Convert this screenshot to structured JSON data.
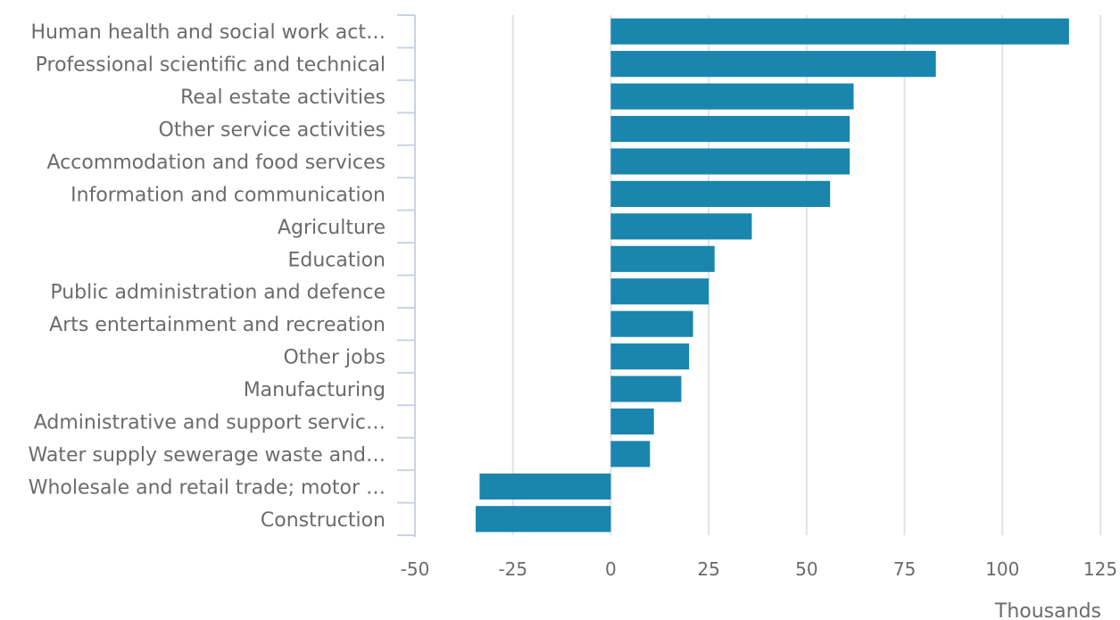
{
  "chart_data": {
    "type": "bar",
    "orientation": "horizontal",
    "categories": [
      "Human health and social work act…",
      "Professional scientific and technical",
      "Real estate activities",
      "Other service activities",
      "Accommodation and food services",
      "Information and communication",
      "Agriculture",
      "Education",
      "Public administration and defence",
      "Arts entertainment and recreation",
      "Other jobs",
      "Manufacturing",
      "Administrative and support servic…",
      "Water supply sewerage waste and…",
      "Wholesale and retail trade; motor …",
      "Construction"
    ],
    "values": [
      117,
      83,
      62,
      61,
      61,
      56,
      36,
      26.5,
      25,
      21,
      20,
      18,
      11,
      10,
      -33.5,
      -34.5
    ],
    "xlim": [
      -50,
      125
    ],
    "x_ticks": [
      -50,
      -25,
      0,
      25,
      50,
      75,
      100,
      125
    ],
    "x_tick_labels": [
      "-50",
      "-25",
      "0",
      "25",
      "50",
      "75",
      "100",
      "125"
    ],
    "xlabel": "Thousands",
    "ylabel": "",
    "title": "",
    "grid": true,
    "legend": "none",
    "bar_color": "#1a85ad",
    "grid_color": "#dfe3ea",
    "axis_color": "#c9d3e6",
    "text_color": "#6b6b6b"
  }
}
